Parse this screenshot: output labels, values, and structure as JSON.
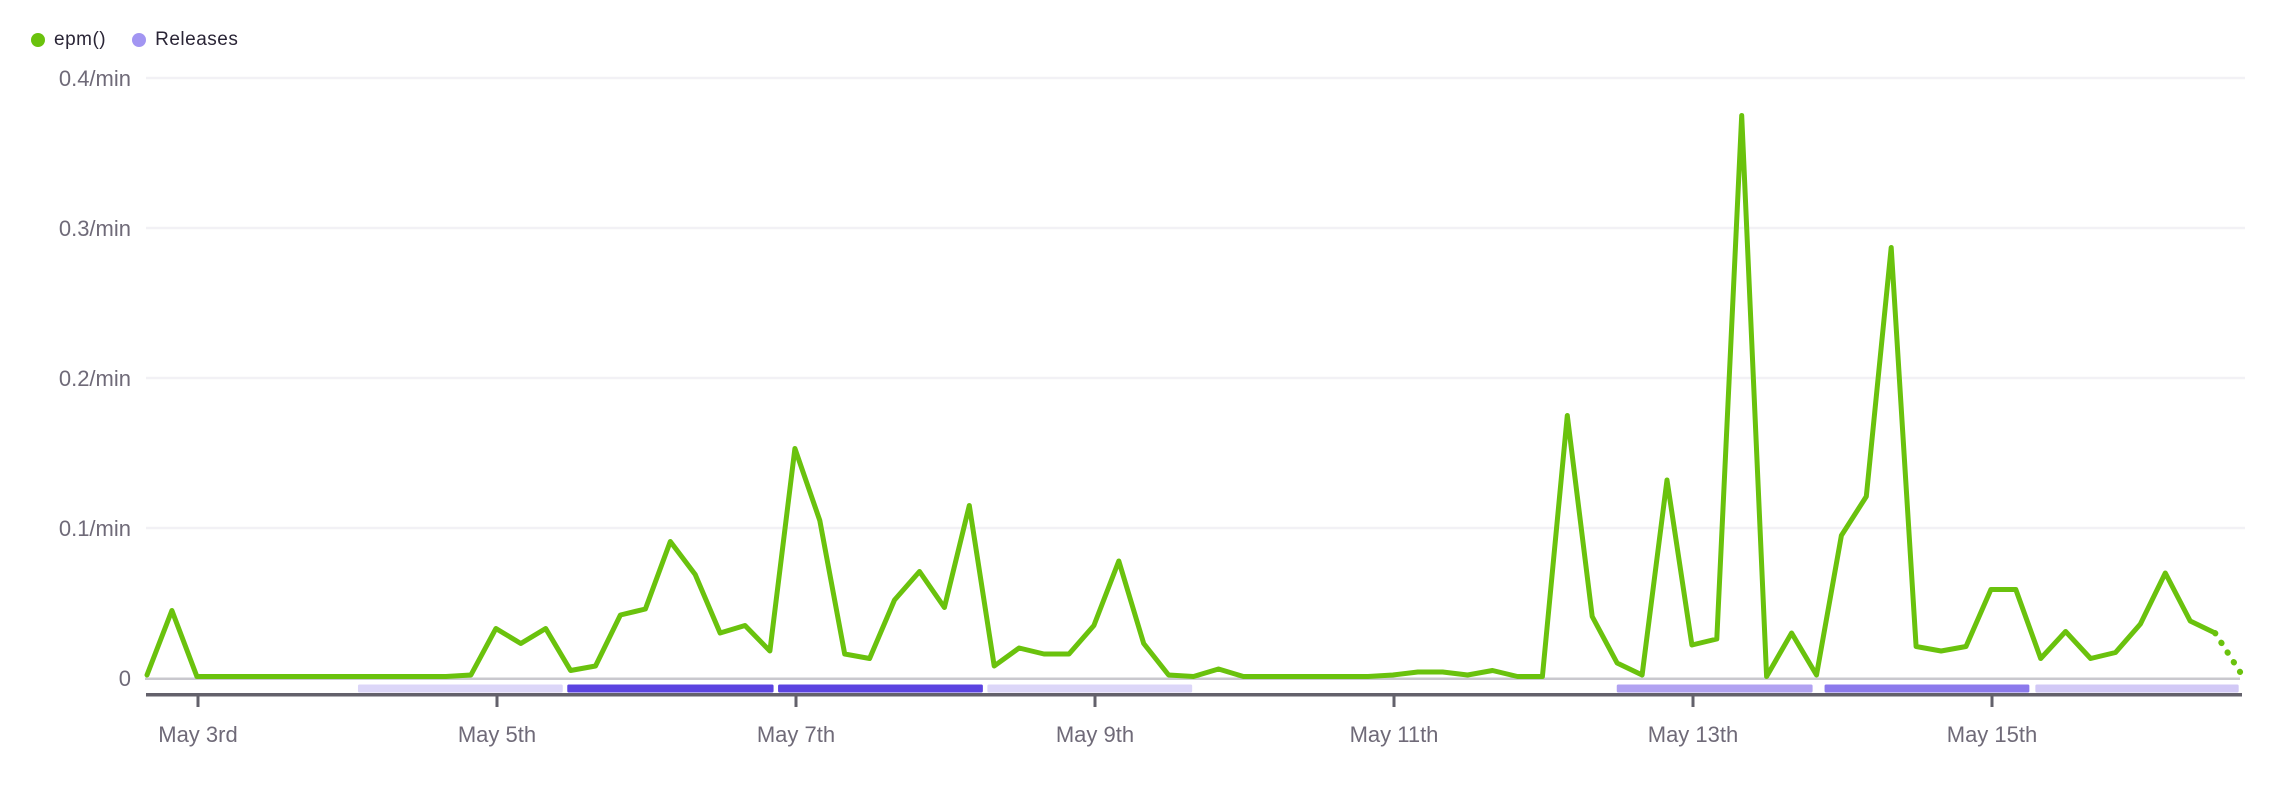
{
  "legend": {
    "items": [
      {
        "label": "epm()",
        "color": "#6ac20d"
      },
      {
        "label": "Releases",
        "color": "#a295f2"
      }
    ]
  },
  "colors": {
    "epm_line": "#6ac20d",
    "grid_line": "#f2f1f5",
    "zero_line": "#c9c8ce",
    "axis_line": "#63616b",
    "axis_label": "#6f6a78",
    "legend_text": "#2a2536"
  },
  "chart_data": {
    "type": "line",
    "title": "",
    "xlabel": "",
    "ylabel": "",
    "unit": "/min",
    "grid": "horizontal",
    "legend_position": "top-left",
    "y_range": [
      0,
      0.42
    ],
    "x_range_days_of_may": [
      2.66,
      16.66
    ],
    "y_ticks": [
      {
        "value": 0,
        "label": "0"
      },
      {
        "value": 0.1,
        "label": "0.1/min"
      },
      {
        "value": 0.2,
        "label": "0.2/min"
      },
      {
        "value": 0.3,
        "label": "0.3/min"
      },
      {
        "value": 0.4,
        "label": "0.4/min"
      }
    ],
    "x_ticks": [
      {
        "day_of_may": 3,
        "label": "May 3rd"
      },
      {
        "day_of_may": 5,
        "label": "May 5th"
      },
      {
        "day_of_may": 7,
        "label": "May 7th"
      },
      {
        "day_of_may": 9,
        "label": "May 9th"
      },
      {
        "day_of_may": 11,
        "label": "May 11th"
      },
      {
        "day_of_may": 13,
        "label": "May 13th"
      },
      {
        "day_of_may": 15,
        "label": "May 15th"
      }
    ],
    "series": [
      {
        "name": "epm()",
        "color": "#6ac20d",
        "start_day_of_may": 2.659,
        "step_days": 0.16667,
        "dotted_from_index": 83,
        "values": [
          0.002,
          0.045,
          0.001,
          0.001,
          0.001,
          0.001,
          0.001,
          0.001,
          0.001,
          0.001,
          0.001,
          0.001,
          0.001,
          0.002,
          0.033,
          0.023,
          0.033,
          0.005,
          0.008,
          0.042,
          0.046,
          0.091,
          0.069,
          0.03,
          0.035,
          0.018,
          0.153,
          0.105,
          0.016,
          0.013,
          0.052,
          0.071,
          0.047,
          0.115,
          0.008,
          0.02,
          0.016,
          0.016,
          0.035,
          0.078,
          0.023,
          0.002,
          0.001,
          0.006,
          0.001,
          0.001,
          0.001,
          0.001,
          0.001,
          0.001,
          0.002,
          0.004,
          0.004,
          0.002,
          0.005,
          0.001,
          0.001,
          0.175,
          0.041,
          0.01,
          0.002,
          0.132,
          0.022,
          0.026,
          0.375,
          0.001,
          0.03,
          0.002,
          0.095,
          0.121,
          0.287,
          0.021,
          0.018,
          0.021,
          0.059,
          0.059,
          0.013,
          0.031,
          0.013,
          0.017,
          0.036,
          0.07,
          0.038,
          0.03,
          0.004
        ]
      }
    ],
    "releases": [
      {
        "start_day_of_may": 4.07,
        "end_day_of_may": 5.44,
        "color": "#dcd6f8"
      },
      {
        "start_day_of_may": 5.47,
        "end_day_of_may": 6.85,
        "color": "#5b43e0"
      },
      {
        "start_day_of_may": 6.88,
        "end_day_of_may": 8.25,
        "color": "#5b43e0"
      },
      {
        "start_day_of_may": 8.28,
        "end_day_of_may": 9.65,
        "color": "#dcd6f8"
      },
      {
        "start_day_of_may": 12.49,
        "end_day_of_may": 13.8,
        "color": "#b1a2f1"
      },
      {
        "start_day_of_may": 13.88,
        "end_day_of_may": 15.25,
        "color": "#8c7aec"
      },
      {
        "start_day_of_may": 15.29,
        "end_day_of_may": 16.65,
        "color": "#d2c9f6"
      }
    ]
  }
}
